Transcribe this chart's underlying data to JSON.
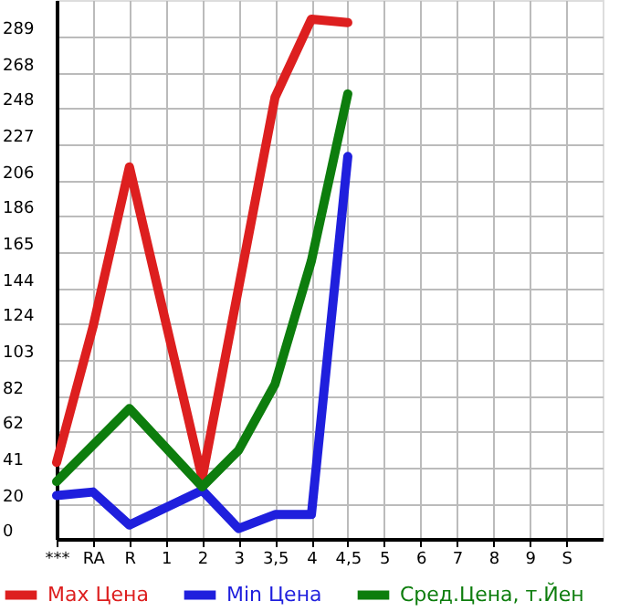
{
  "chart_data": {
    "type": "line",
    "categories": [
      "***",
      "RA",
      "R",
      "1",
      "2",
      "3",
      "3,5",
      "4",
      "4,5",
      "5",
      "6",
      "7",
      "8",
      "9",
      "S"
    ],
    "series": [
      {
        "name": "Max Цена",
        "color": "#dd1f1f",
        "values": [
          44,
          122,
          214,
          null,
          35,
          null,
          254,
          299,
          297,
          null,
          null,
          null,
          null,
          null,
          null
        ]
      },
      {
        "name": "Min Цена",
        "color": "#1f1fdd",
        "values": [
          25,
          27,
          8,
          null,
          28,
          6,
          14,
          14,
          220,
          null,
          null,
          null,
          null,
          null,
          null
        ]
      },
      {
        "name": "Сред.Цена, т.Йен",
        "color": "#0d7d0d",
        "values": [
          33,
          54,
          75,
          null,
          30,
          51,
          89,
          160,
          256,
          null,
          null,
          null,
          null,
          null,
          null
        ]
      }
    ],
    "ylim": [
      0,
      310
    ],
    "yticks": [
      0,
      20,
      41,
      62,
      82,
      103,
      124,
      144,
      165,
      186,
      206,
      227,
      248,
      268,
      289
    ],
    "grid": true,
    "legend": "bottom",
    "marker": "none",
    "line_style": "solid"
  }
}
